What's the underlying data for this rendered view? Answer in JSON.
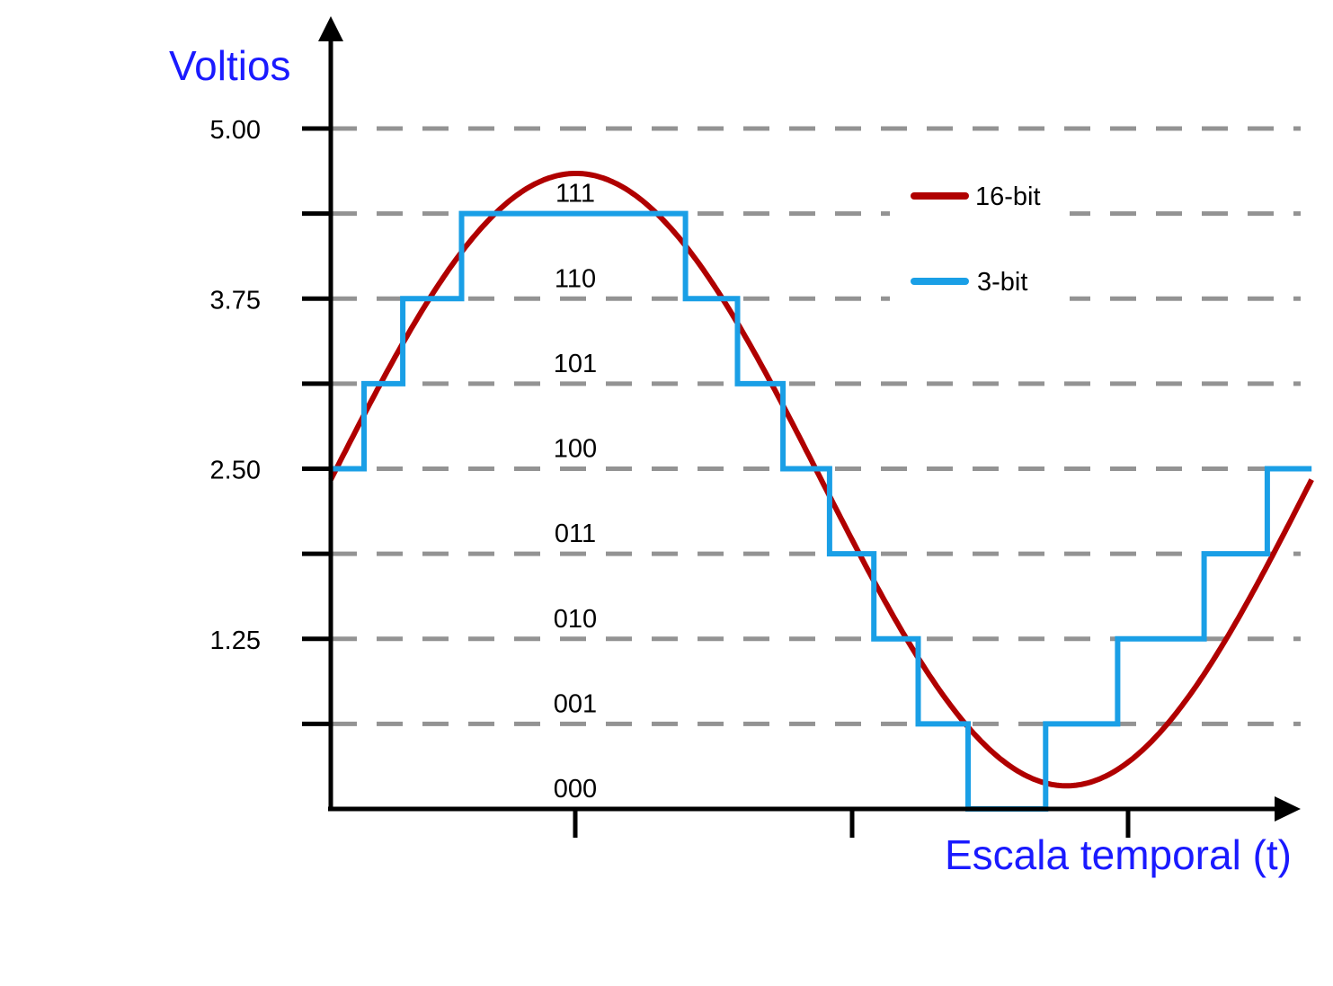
{
  "chart_data": {
    "type": "line",
    "title": "",
    "ylabel": "Voltios",
    "xlabel": "Escala temporal (t)",
    "ylim": [
      0,
      5.0
    ],
    "y_tick_labels": [
      "5.00",
      "3.75",
      "2.50",
      "1.25"
    ],
    "y_tick_values": [
      5.0,
      3.75,
      2.5,
      1.25
    ],
    "levels": [
      0.625,
      1.25,
      1.875,
      2.5,
      3.125,
      3.75,
      4.375,
      5.0
    ],
    "codes": [
      "000",
      "001",
      "010",
      "011",
      "100",
      "101",
      "110",
      "111"
    ],
    "x_ticks": [
      0.25,
      0.5,
      0.75
    ],
    "grid": "dashed horizontal",
    "legend_position": "top-right",
    "series": [
      {
        "name": "16-bit",
        "kind": "sine",
        "offset": 2.5,
        "amplitude": 2.25,
        "x_range": [
          0,
          0.885
        ],
        "color": "#b00000"
      },
      {
        "name": "3-bit",
        "kind": "step",
        "color": "#1a9fe6",
        "x": [
          0,
          0.03,
          0.065,
          0.118,
          0.32,
          0.367,
          0.408,
          0.45,
          0.49,
          0.53,
          0.575,
          0.645,
          0.71,
          0.788,
          0.845,
          0.87,
          0.885
        ],
        "values": [
          2.5,
          3.125,
          3.75,
          4.375,
          3.75,
          3.125,
          2.5,
          1.875,
          1.25,
          0.625,
          0.0,
          0.625,
          1.25,
          1.875,
          2.5,
          2.5,
          2.5
        ]
      }
    ]
  }
}
